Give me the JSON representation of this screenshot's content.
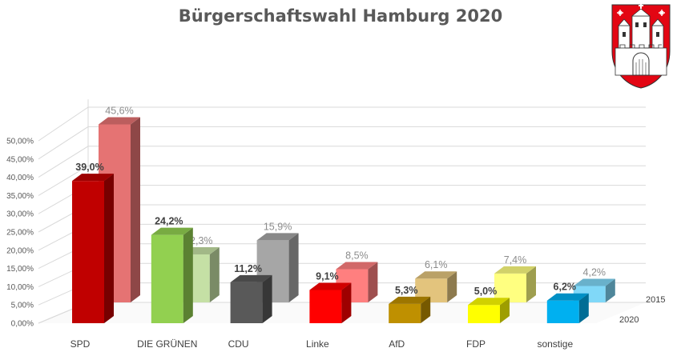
{
  "chart_data": {
    "type": "bar",
    "title": "Bürgerschaftswahl Hamburg 2020",
    "categories": [
      "SPD",
      "DIE GRÜNEN",
      "CDU",
      "Linke",
      "AfD",
      "FDP",
      "sonstige"
    ],
    "series": [
      {
        "name": "2020",
        "values": [
          39.0,
          24.2,
          11.2,
          9.1,
          5.3,
          5.0,
          6.2
        ],
        "labels": [
          "39,0%",
          "24,2%",
          "11,2%",
          "9,1%",
          "5,3%",
          "5,0%",
          "6,2%"
        ]
      },
      {
        "name": "2015",
        "values": [
          45.6,
          12.3,
          15.9,
          8.5,
          6.1,
          7.4,
          4.2
        ],
        "labels": [
          "45,6%",
          "12,3%",
          "15,9%",
          "8,5%",
          "6,1%",
          "7,4%",
          "4,2%"
        ]
      }
    ],
    "yticks": [
      "0,00%",
      "5,00%",
      "10,00%",
      "15,00%",
      "20,00%",
      "25,00%",
      "30,00%",
      "35,00%",
      "40,00%",
      "45,00%",
      "50,00%"
    ],
    "ylim": [
      0,
      50
    ],
    "grid": true,
    "chart_style": "3d-column",
    "colors": {
      "2020": [
        "#C00000",
        "#92D050",
        "#595959",
        "#FF0000",
        "#BF9000",
        "#FFFF00",
        "#00B0F0"
      ],
      "2015": [
        "#E57373",
        "#C5E0A5",
        "#A6A6A6",
        "#FF7F7F",
        "#E3C47D",
        "#FFFF80",
        "#80D8F8"
      ]
    }
  },
  "emblem": {
    "icon": "hamburg-coat-of-arms-icon",
    "colors": {
      "shield": "#E30613",
      "castle": "#ffffff"
    }
  }
}
